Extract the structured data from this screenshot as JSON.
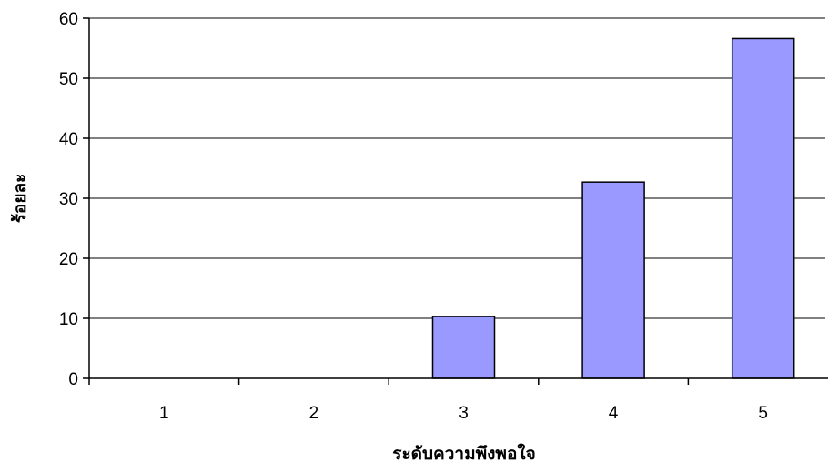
{
  "chart_data": {
    "type": "bar",
    "title": "",
    "xlabel": "ระดับความพึงพอใจ",
    "ylabel": "ร้อยละ",
    "categories": [
      "1",
      "2",
      "3",
      "4",
      "5"
    ],
    "values": [
      0,
      0,
      10.3,
      32.7,
      56.6
    ],
    "ylim": [
      0,
      60
    ],
    "yticks": [
      "0",
      "10",
      "20",
      "30",
      "40",
      "50",
      "60"
    ],
    "grid": true,
    "legend": "none",
    "bar_color": "#9999ff",
    "bar_edge_color": "#000000"
  }
}
